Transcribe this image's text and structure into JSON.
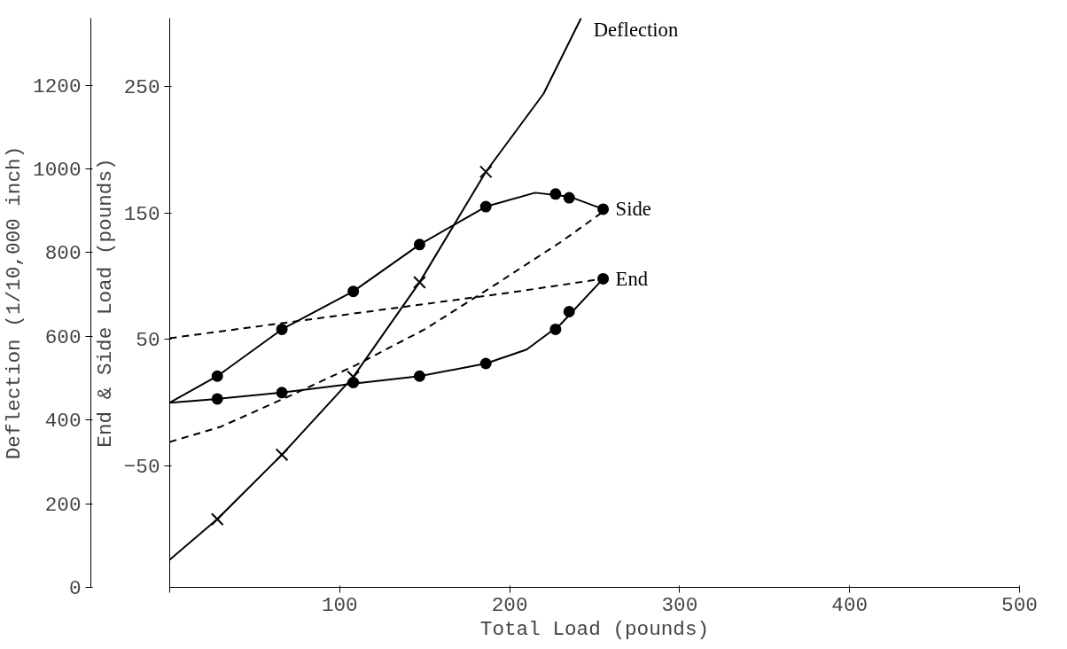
{
  "chart_data": {
    "type": "line",
    "xlabel": "Total Load (pounds)",
    "ylabel": "Deflection (1/10,000 inch)",
    "y2label": "End & Side Load (pounds)",
    "xlim": [
      0,
      500
    ],
    "xticks": [
      {
        "value": 0,
        "label": null
      },
      100,
      200,
      300,
      400,
      500
    ],
    "ylim": [
      0,
      1360
    ],
    "yticks": [
      0,
      200,
      400,
      600,
      800,
      1000,
      1200
    ],
    "y2lim": [
      -146,
      304
    ],
    "y2ticks": [
      -50,
      50,
      150,
      250
    ],
    "grid": false,
    "series": [
      {
        "name": "Deflection",
        "color": "#000000",
        "marker": "none",
        "line_style": "solid",
        "x": [
          0,
          28,
          66,
          108,
          147,
          186,
          220,
          242
        ],
        "values": [
          66,
          163,
          317,
          503,
          729,
          993,
          1180,
          1360
        ]
      },
      {
        "type": "scatter",
        "color": "#000000",
        "marker": "cross",
        "x": [
          28,
          66,
          108,
          147,
          186
        ],
        "values": [
          163,
          317,
          503,
          729,
          993
        ]
      },
      {
        "name": "Side",
        "type": "line",
        "axis": "y2",
        "color": "#000000",
        "marker": "none",
        "line_style": "solid",
        "x": [
          0,
          28,
          66,
          108,
          147,
          186,
          215,
          235,
          255
        ],
        "values": [
          0,
          21,
          58,
          88,
          125,
          155,
          166,
          163,
          153
        ]
      },
      {
        "type": "scatter",
        "axis": "y2",
        "color": "#000000",
        "marker": "circle",
        "x": [
          28,
          66,
          108,
          147,
          186,
          227,
          235,
          255
        ],
        "values": [
          21,
          58,
          88,
          125,
          155,
          165,
          162,
          153
        ]
      },
      {
        "name": "End",
        "type": "line",
        "axis": "y2",
        "color": "#000000",
        "marker": "none",
        "line_style": "solid",
        "x": [
          0,
          28,
          66,
          108,
          147,
          186,
          210,
          230,
          255
        ],
        "values": [
          0,
          3,
          8,
          15,
          21,
          31,
          42,
          62,
          98
        ]
      },
      {
        "type": "scatter",
        "axis": "y2",
        "color": "#000000",
        "marker": "circle",
        "x": [
          28,
          66,
          108,
          147,
          186,
          227,
          235,
          255
        ],
        "values": [
          3,
          8,
          16,
          21,
          31,
          58,
          72,
          98
        ]
      },
      {
        "type": "line",
        "axis": "y2",
        "color": "#000000",
        "marker": "none",
        "line_style": "dashed",
        "x": [
          0,
          30,
          70,
          110,
          150,
          190,
          230,
          255
        ],
        "values": [
          -31,
          -19,
          5,
          30,
          58,
          92,
          127,
          151
        ]
      },
      {
        "type": "line",
        "axis": "y2",
        "color": "#000000",
        "marker": "none",
        "line_style": "dashed",
        "x": [
          0,
          50,
          100,
          150,
          200,
          255
        ],
        "values": [
          51,
          60,
          69,
          78,
          87,
          98
        ]
      }
    ]
  }
}
